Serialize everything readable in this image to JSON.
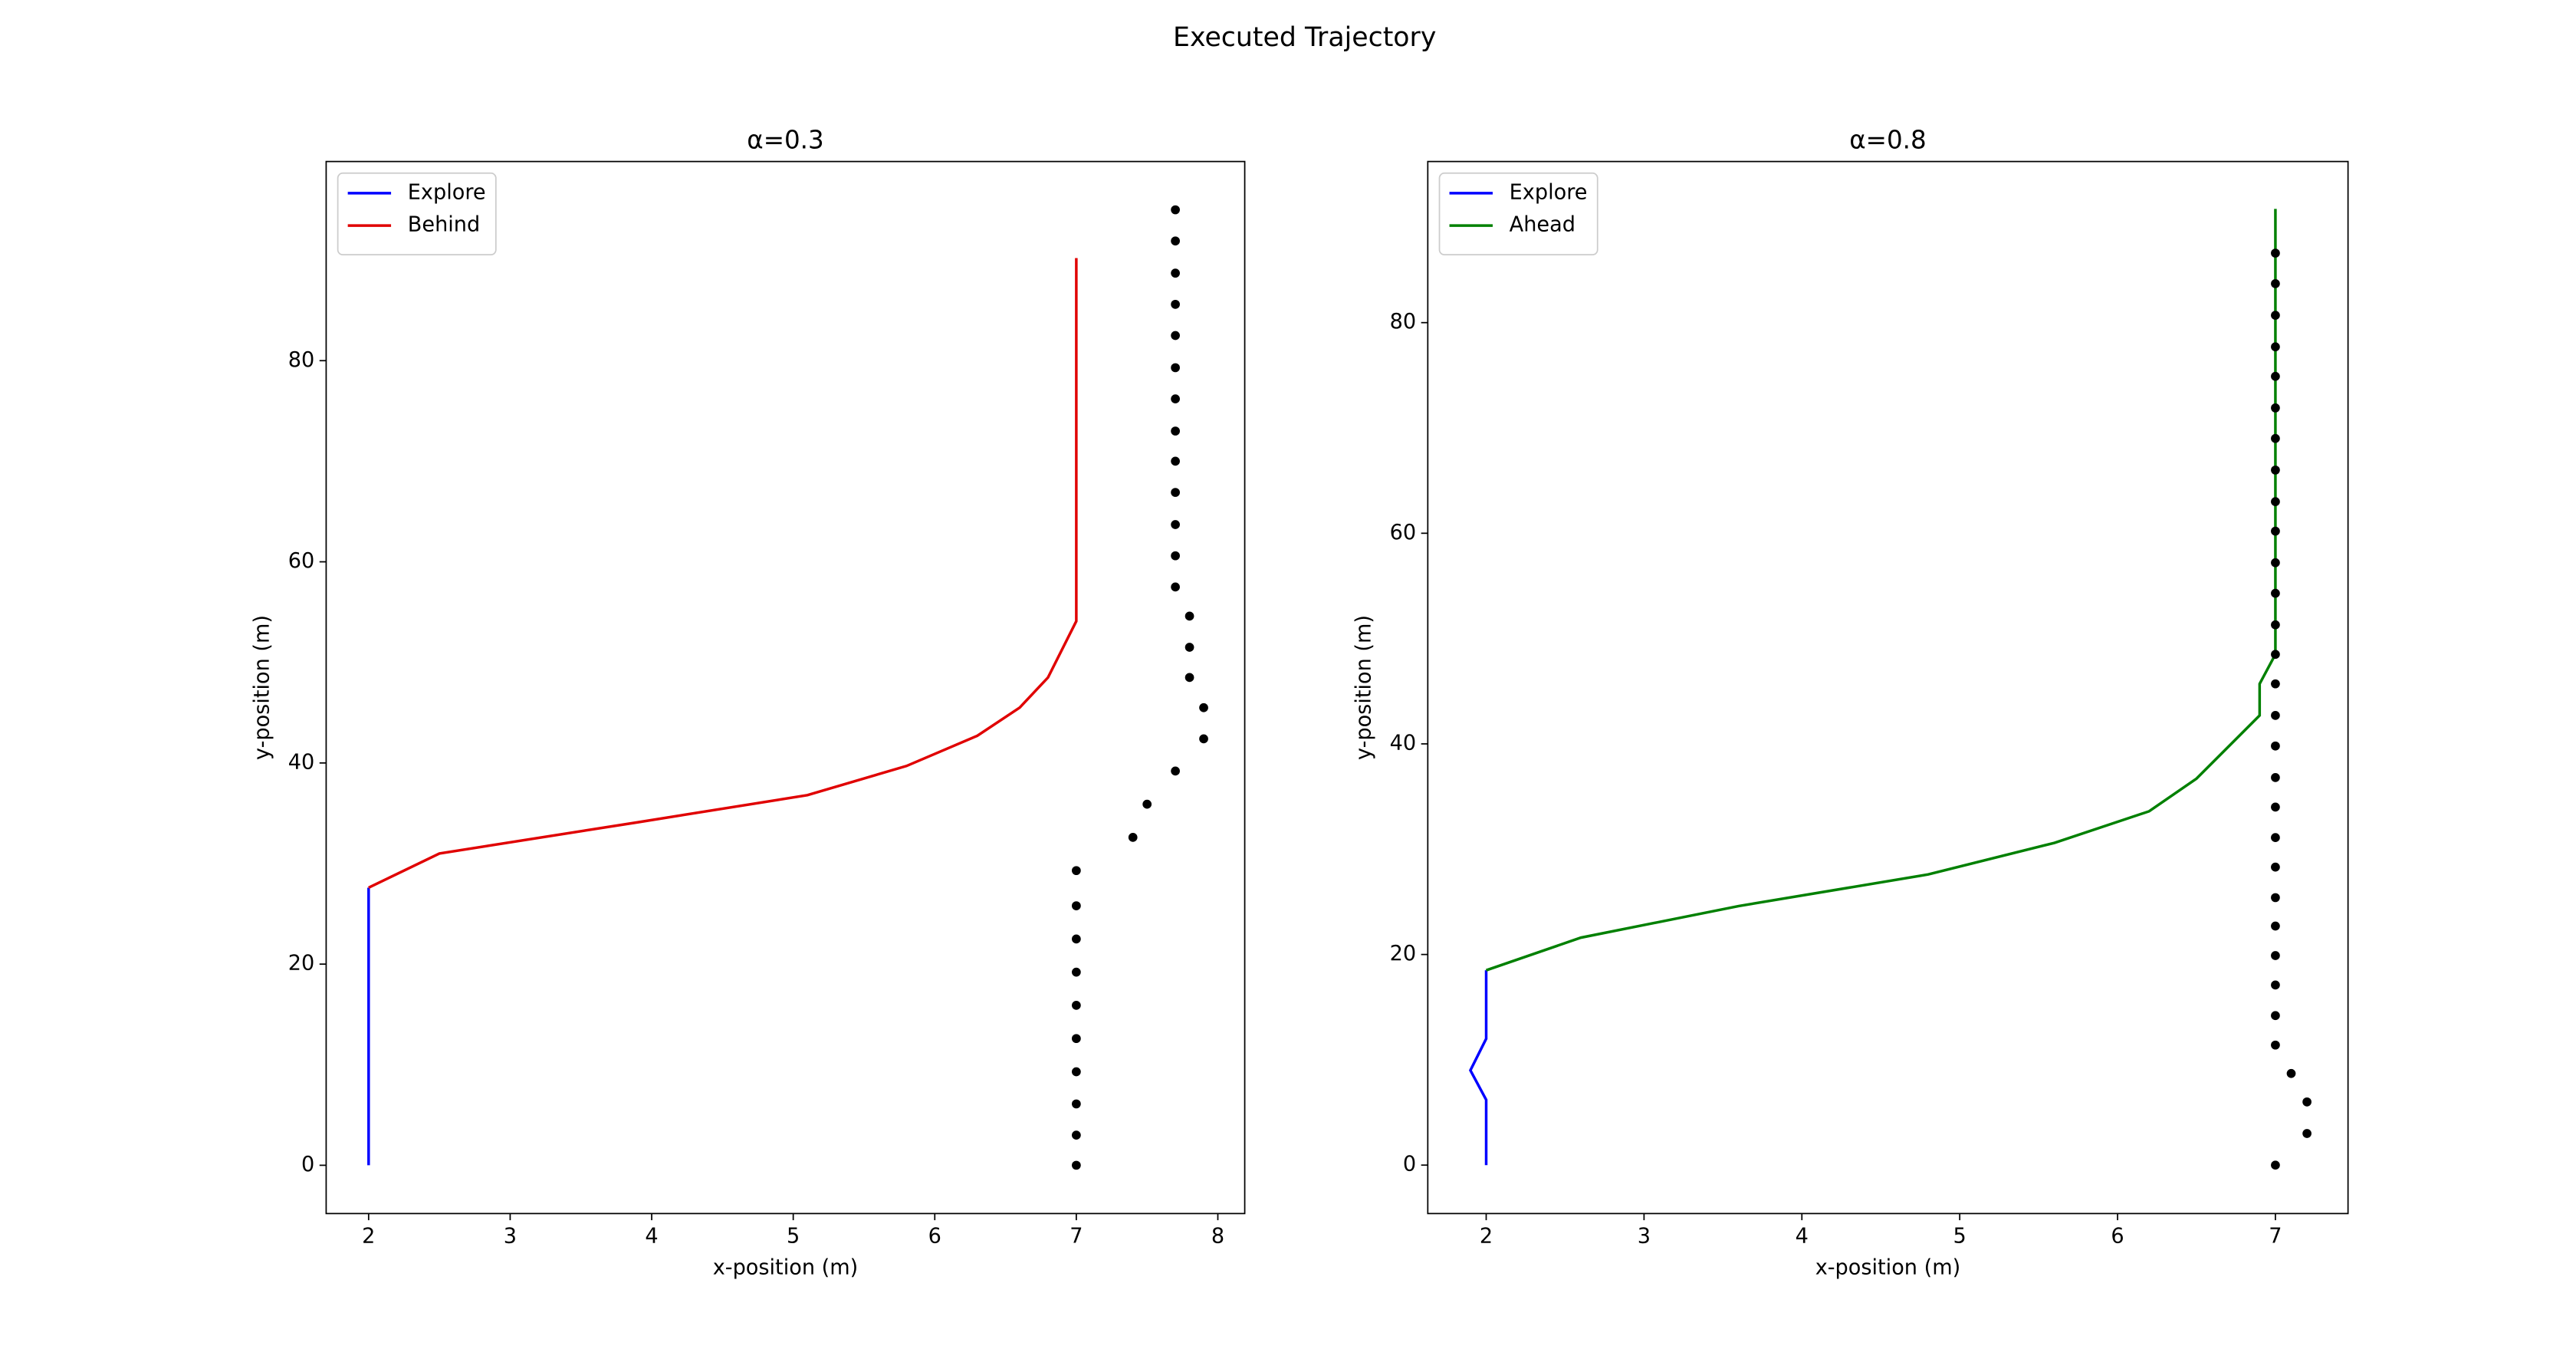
{
  "title": "Executed Trajectory",
  "chart_data": [
    {
      "type": "line",
      "title": "α=0.3",
      "xlabel": "x-position (m)",
      "ylabel": "y-position (m)",
      "xlim": [
        1.7,
        8.19
      ],
      "ylim": [
        -4.8,
        99.8
      ],
      "xticks": [
        2,
        3,
        4,
        5,
        6,
        7,
        8
      ],
      "yticks": [
        0,
        20,
        40,
        60,
        80
      ],
      "legend": "upper left",
      "series": [
        {
          "name": "Explore",
          "kind": "line",
          "color": "#0000ff",
          "x": [
            2,
            2
          ],
          "values": [
            0,
            27.6
          ]
        },
        {
          "name": "Behind",
          "kind": "line",
          "color": "#e00000",
          "x": [
            2,
            2.5,
            3.9,
            5.1,
            5.8,
            6.3,
            6.6,
            6.8,
            7,
            7
          ],
          "values": [
            27.6,
            31.0,
            34.1,
            36.8,
            39.7,
            42.7,
            45.5,
            48.5,
            54.1,
            90.2
          ]
        },
        {
          "kind": "scatter",
          "color": "#000000",
          "x": [
            7,
            7,
            7,
            7,
            7,
            7,
            7,
            7,
            7,
            7,
            7.4,
            7.5,
            7.7,
            7.9,
            7.9,
            7.8,
            7.8,
            7.8,
            7.7,
            7.7,
            7.7,
            7.7,
            7.7,
            7.7,
            7.7,
            7.7,
            7.7,
            7.7,
            7.7,
            7.7,
            7.7
          ],
          "values": [
            0,
            3.0,
            6.1,
            9.3,
            12.6,
            15.9,
            19.2,
            22.5,
            25.8,
            29.3,
            32.6,
            35.9,
            39.2,
            42.4,
            45.5,
            48.5,
            51.5,
            54.6,
            57.5,
            60.6,
            63.7,
            66.9,
            70.0,
            73.0,
            76.2,
            79.3,
            82.5,
            85.6,
            88.7,
            91.9,
            95.0
          ]
        }
      ]
    },
    {
      "type": "line",
      "title": "α=0.8",
      "xlabel": "x-position (m)",
      "ylabel": "y-position (m)",
      "xlim": [
        1.63,
        7.46
      ],
      "ylim": [
        -4.6,
        95.3
      ],
      "xticks": [
        2,
        3,
        4,
        5,
        6,
        7
      ],
      "yticks": [
        0,
        20,
        40,
        60,
        80
      ],
      "legend": "upper left",
      "series": [
        {
          "name": "Explore",
          "kind": "line",
          "color": "#0000ff",
          "x": [
            2,
            2,
            1.9,
            2,
            2
          ],
          "values": [
            0,
            6.2,
            9.0,
            12.0,
            18.5
          ]
        },
        {
          "name": "Ahead",
          "kind": "line",
          "color": "#008000",
          "x": [
            2,
            2.6,
            3.6,
            4.8,
            5.6,
            6.2,
            6.5,
            6.9,
            6.9,
            7,
            7
          ],
          "values": [
            18.5,
            21.6,
            24.6,
            27.6,
            30.6,
            33.6,
            36.7,
            42.7,
            45.7,
            48.5,
            90.8
          ]
        },
        {
          "kind": "scatter",
          "color": "#000000",
          "x": [
            7,
            7.2,
            7.2,
            7.1,
            7,
            7,
            7,
            7,
            7,
            7,
            7,
            7,
            7,
            7,
            7,
            7,
            7,
            7,
            7,
            7,
            7,
            7,
            7,
            7,
            7,
            7,
            7,
            7,
            7,
            7,
            7
          ],
          "values": [
            0,
            3.0,
            6.0,
            8.7,
            11.4,
            14.2,
            17.1,
            19.9,
            22.7,
            25.4,
            28.3,
            31.1,
            34.0,
            36.8,
            39.8,
            42.7,
            45.7,
            48.5,
            51.3,
            54.3,
            57.2,
            60.2,
            63.0,
            66.0,
            69.0,
            71.9,
            74.9,
            77.7,
            80.7,
            83.7,
            86.6
          ]
        }
      ]
    }
  ]
}
